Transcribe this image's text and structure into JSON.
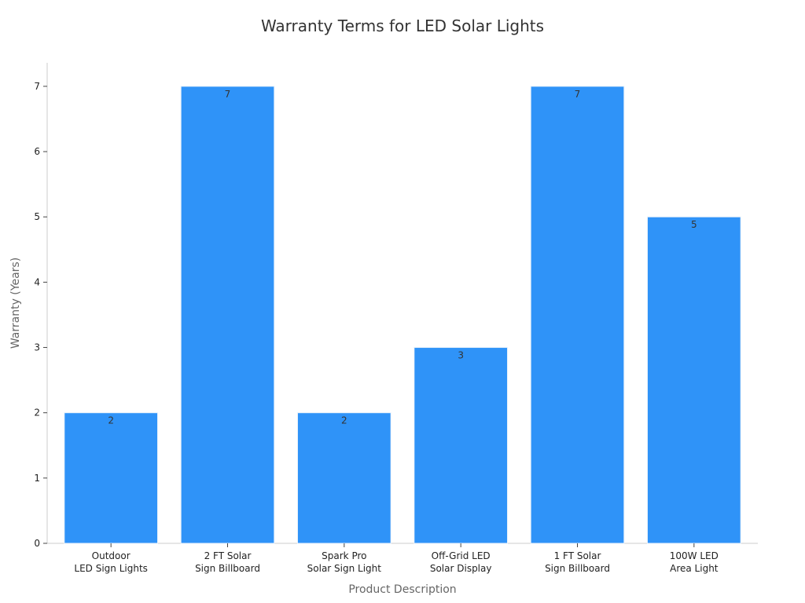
{
  "chart_data": {
    "type": "bar",
    "title": "Warranty Terms for LED Solar Lights",
    "xlabel": "Product Description",
    "ylabel": "Warranty (Years)",
    "categories": [
      [
        "Outdoor",
        "LED Sign Lights"
      ],
      [
        "2 FT Solar",
        "Sign Billboard"
      ],
      [
        "Spark Pro",
        "Solar Sign Light"
      ],
      [
        "Off-Grid LED",
        "Solar Display"
      ],
      [
        "1 FT Solar",
        "Sign Billboard"
      ],
      [
        "100W LED",
        "Area Light"
      ]
    ],
    "values": [
      2,
      7,
      2,
      3,
      7,
      5
    ],
    "data_labels": [
      "2",
      "7",
      "2",
      "3",
      "7",
      "5"
    ],
    "yticks": [
      0,
      1,
      2,
      3,
      4,
      5,
      6,
      7
    ],
    "ylim": [
      0,
      7.36
    ],
    "grid": false,
    "bar_color": "#2f93f8"
  }
}
